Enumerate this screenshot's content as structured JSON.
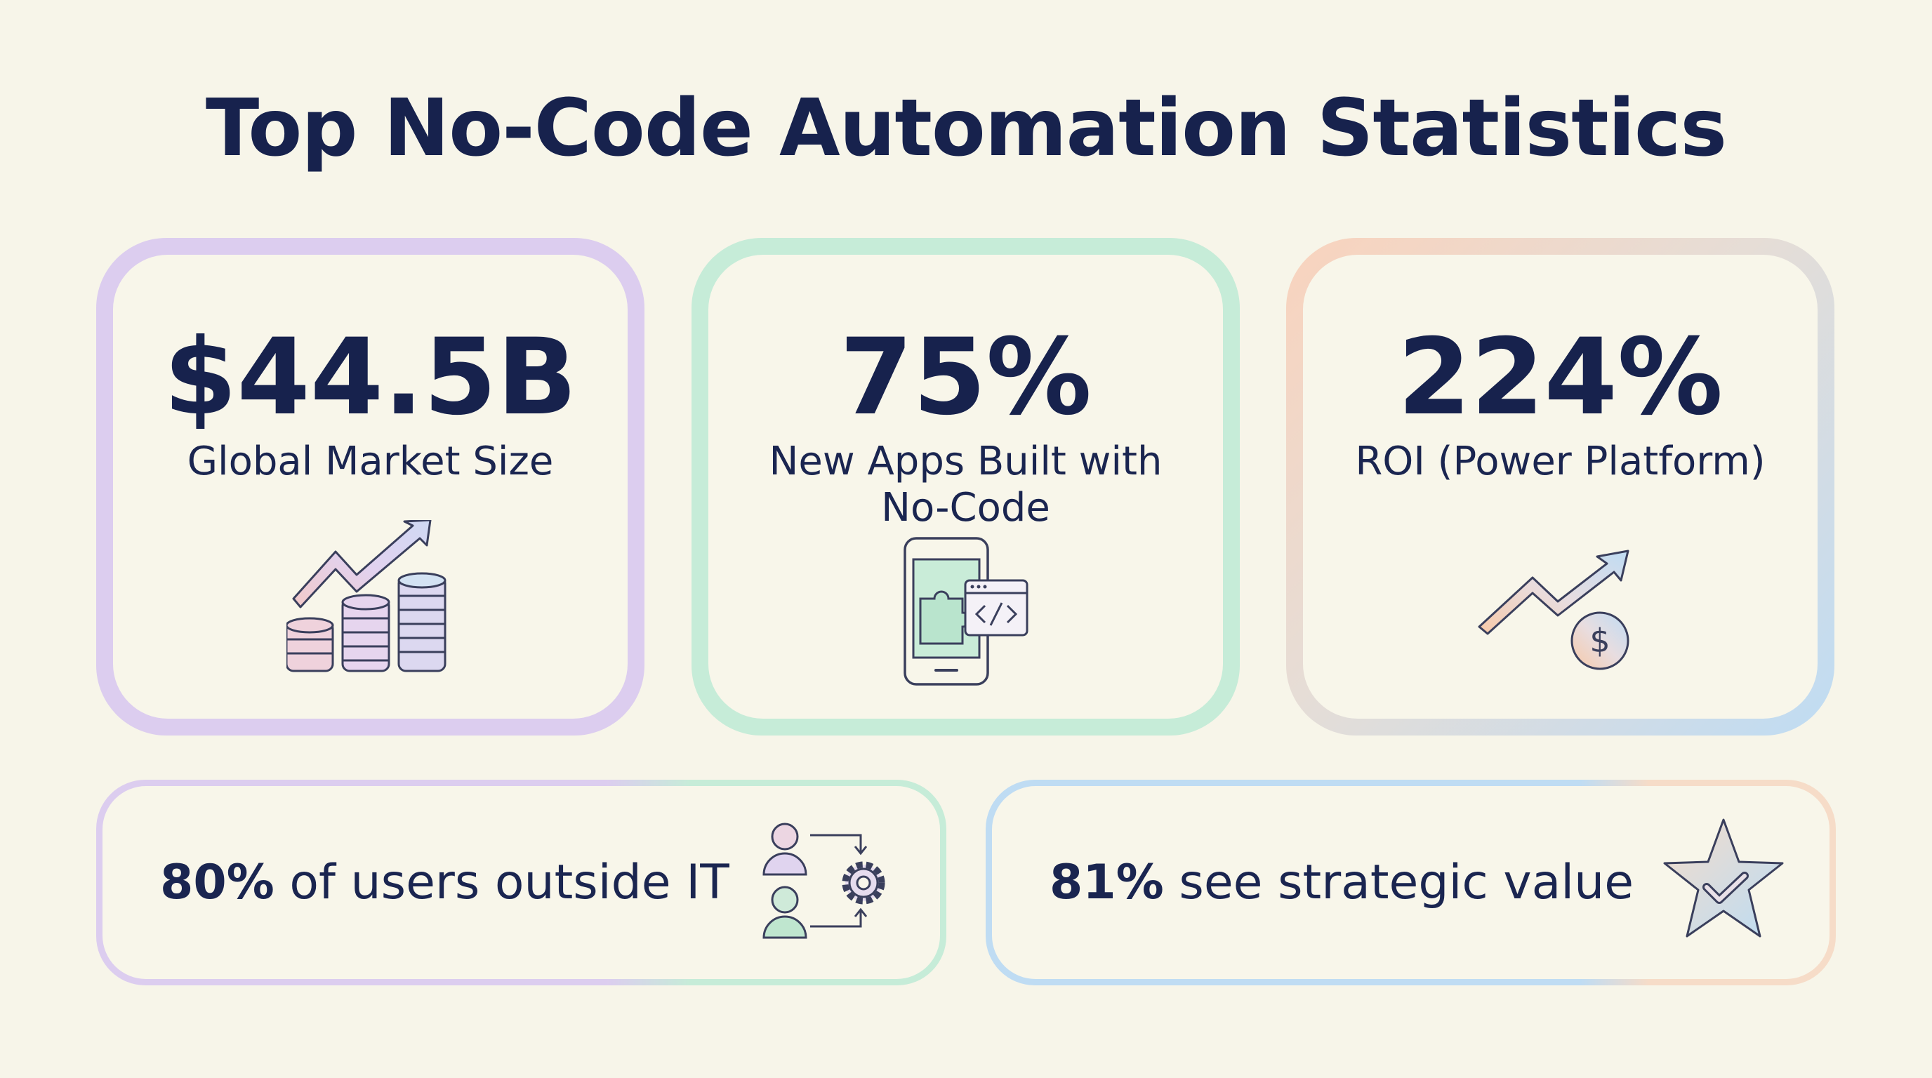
{
  "title": "Top No-Code Automation Statistics",
  "cards": [
    {
      "value": "$44.5B",
      "label": "Global Market Size",
      "icon": "coins-growth-icon",
      "accent": "#dccdef"
    },
    {
      "value": "75%",
      "label_line1": "New Apps Built with",
      "label_line2": "No-Code",
      "icon": "mobile-app-code-icon",
      "accent": "#c6ecd8"
    },
    {
      "value": "224%",
      "label": "ROI (Power Platform)",
      "icon": "roi-arrow-dollar-icon",
      "accent": "#bfdcf3"
    }
  ],
  "bottom": [
    {
      "value": "80%",
      "text": "of users outside IT",
      "icon": "users-workflow-gear-icon"
    },
    {
      "value": "81%",
      "text": "see strategic value",
      "icon": "star-check-icon"
    }
  ],
  "colors": {
    "background": "#f7f5e9",
    "text": "#17224d",
    "lavender": "#dccdef",
    "mint": "#c6ecd8",
    "sky": "#bfdcf3",
    "peach": "#f9d3bd"
  }
}
